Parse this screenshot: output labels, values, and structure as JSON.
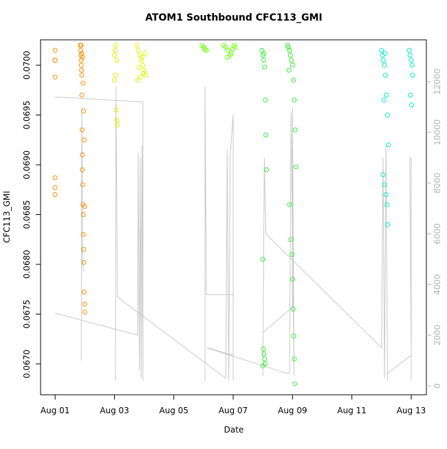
{
  "chart_data": {
    "type": "scatter",
    "title": "ATOM1 Southbound CFC113_GMI",
    "x_label": "Date",
    "y_label": "CFC113_GMI",
    "xlim": [
      -0.49,
      12.51
    ],
    "xticks": [
      {
        "value": 0,
        "label": "Aug 01"
      },
      {
        "value": 2,
        "label": "Aug 03"
      },
      {
        "value": 4,
        "label": "Aug 05"
      },
      {
        "value": 6,
        "label": "Aug 07"
      },
      {
        "value": 8,
        "label": "Aug 09"
      },
      {
        "value": 10,
        "label": "Aug 11"
      },
      {
        "value": 12,
        "label": "Aug 13"
      }
    ],
    "ylim": [
      0.06669,
      0.070255
    ],
    "yticks": [
      {
        "value": 0.067,
        "label": "0.0670"
      },
      {
        "value": 0.0675,
        "label": "0.0675"
      },
      {
        "value": 0.068,
        "label": "0.0680"
      },
      {
        "value": 0.0685,
        "label": "0.0685"
      },
      {
        "value": 0.069,
        "label": "0.0690"
      },
      {
        "value": 0.0695,
        "label": "0.0695"
      },
      {
        "value": 0.07,
        "label": "0.0700"
      }
    ],
    "y2lim": [
      -352,
      13652
    ],
    "y2ticks": [
      0,
      2000,
      4000,
      6000,
      8000,
      10000,
      12000
    ],
    "y2_color": "#b4b4b4",
    "series": [
      {
        "color": "#FF8C00",
        "x": [
          0,
          0,
          0,
          0,
          0,
          0,
          0
        ],
        "values": [
          0.07015,
          0.07005,
          0.07005,
          0.06988,
          0.06887,
          0.06877,
          0.0687
        ]
      },
      {
        "color": "#FF8C00",
        "x": [
          0.85,
          0.86,
          0.87,
          0.88,
          0.88,
          0.89,
          0.9,
          0.9,
          0.91,
          0.92,
          0.92,
          0.93,
          0.94,
          0.95,
          0.95,
          0.96,
          0.97,
          0.98,
          0.99,
          1.0,
          0.88,
          0.9,
          0.92,
          0.94,
          0.96,
          0.98,
          1.0
        ],
        "values": [
          0.0702,
          0.07015,
          0.0701,
          0.07005,
          0.07,
          0.06995,
          0.0699,
          0.0697,
          0.06935,
          0.0691,
          0.06895,
          0.0688,
          0.0686,
          0.0685,
          0.0683,
          0.06815,
          0.06802,
          0.06772,
          0.0676,
          0.06752,
          0.0702,
          0.07012,
          0.07008,
          0.06982,
          0.06954,
          0.06925,
          0.06858
        ]
      },
      {
        "color": "#E6E600",
        "x": [
          2.0,
          2.02,
          2.04,
          2.06,
          2.08,
          2.1,
          2.0,
          2.04,
          2.08
        ],
        "values": [
          0.0701,
          0.07015,
          0.0699,
          0.06955,
          0.06945,
          0.0694,
          0.06985,
          0.0702,
          0.07005
        ]
      },
      {
        "color": "#DDF500",
        "x": [
          2.75,
          2.8,
          2.85,
          2.9,
          2.95,
          3.0,
          3.05,
          2.78,
          2.88,
          2.98,
          3.03,
          2.83,
          2.93
        ],
        "values": [
          0.0702,
          0.07015,
          0.0701,
          0.07005,
          0.07,
          0.06995,
          0.0699,
          0.06985,
          0.06988,
          0.06992,
          0.07012,
          0.06998,
          0.07008
        ]
      },
      {
        "color": "#66FF00",
        "x": [
          4.95,
          5.0,
          5.05,
          5.1,
          5.68,
          5.75,
          5.82,
          5.9,
          5.97,
          6.03,
          6.07,
          5.8,
          5.93
        ],
        "values": [
          0.0702,
          0.07018,
          0.07016,
          0.07015,
          0.0702,
          0.07018,
          0.07015,
          0.0701,
          0.07016,
          0.0702,
          0.07018,
          0.07008,
          0.07012
        ]
      },
      {
        "color": "#33EE33",
        "x": [
          6.97,
          7.0,
          7.03,
          7.06,
          7.08,
          7.1,
          7.12,
          7.0,
          7.02,
          7.04,
          7.06,
          7.08,
          7.0,
          7.04
        ],
        "values": [
          0.07015,
          0.0701,
          0.07005,
          0.06998,
          0.06965,
          0.0693,
          0.06895,
          0.06805,
          0.06715,
          0.0671,
          0.06705,
          0.067,
          0.06698,
          0.07012
        ]
      },
      {
        "color": "#33EE33",
        "x": [
          7.83,
          7.86,
          7.9,
          7.93,
          7.96,
          8.0,
          8.03,
          8.06,
          8.09,
          8.11,
          7.9,
          7.95,
          8.0,
          8.02,
          8.04,
          8.06,
          7.88,
          7.98,
          8.08
        ],
        "values": [
          0.0702,
          0.07018,
          0.07015,
          0.0701,
          0.07005,
          0.07,
          0.06985,
          0.06965,
          0.06935,
          0.06898,
          0.0686,
          0.06825,
          0.06785,
          0.06755,
          0.06728,
          0.06705,
          0.06995,
          0.0681,
          0.0668
        ]
      },
      {
        "color": "#00F0C0",
        "x": [
          11.0,
          11.03,
          11.06,
          11.1,
          11.13,
          11.16,
          11.2,
          11.23,
          11.05,
          11.1,
          11.15,
          11.18,
          11.2,
          11.08,
          11.12
        ],
        "values": [
          0.07015,
          0.0701,
          0.07005,
          0.07,
          0.0699,
          0.0697,
          0.0695,
          0.0692,
          0.0689,
          0.0688,
          0.0687,
          0.0686,
          0.0684,
          0.06965,
          0.07012
        ]
      },
      {
        "color": "#00F0C0",
        "x": [
          11.93,
          11.96,
          12.0,
          12.03,
          12.05,
          11.97,
          12.01
        ],
        "values": [
          0.07015,
          0.0701,
          0.07005,
          0.07,
          0.0699,
          0.0697,
          0.0696
        ]
      },
      {
        "axis": "y2",
        "color": "#c8c8c8",
        "x": [
          0,
          2.96,
          2.96,
          2.93,
          2.9,
          2.87,
          2.84,
          2.8,
          2.78,
          0,
          null,
          0.88,
          0.9,
          0.93,
          0.95,
          null,
          2.03,
          2.05,
          2.1,
          5.75,
          5.8,
          5.85,
          5.9,
          6.0,
          6.0,
          null,
          5.05,
          5.05,
          5.1,
          6.0,
          null,
          5.15,
          6.0,
          null,
          7.0,
          7.05,
          7.1,
          11.0,
          11.05,
          11.1,
          11.15,
          11.2,
          null,
          7.0,
          8.0,
          8.0,
          8.05,
          7.95,
          7.9,
          7.8,
          5.1,
          null,
          11.2,
          12.0,
          11.95,
          12.0,
          12.0
        ],
        "values": [
          11400,
          11200,
          200,
          9500,
          300,
          9000,
          600,
          9200,
          2000,
          2870,
          null,
          1000,
          11000,
          5000,
          4500,
          null,
          200,
          11800,
          3500,
          300,
          9300,
          200,
          9100,
          10700,
          200,
          null,
          200,
          11800,
          3600,
          3600,
          null,
          1500,
          1200,
          null,
          400,
          9000,
          6000,
          1500,
          9000,
          300,
          9500,
          200,
          null,
          2100,
          3100,
          11000,
          400,
          10800,
          500,
          500,
          1500,
          null,
          500,
          1200,
          9000,
          9000,
          200
        ]
      }
    ]
  }
}
